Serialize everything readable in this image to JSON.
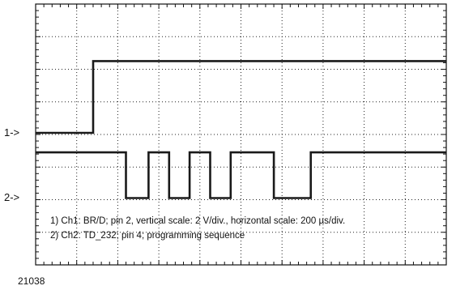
{
  "chart_data": {
    "type": "line",
    "title": "",
    "xlabel": "",
    "ylabel": "",
    "xlim": [
      0,
      10
    ],
    "ylim": [
      0,
      8
    ],
    "grid": true,
    "divisions": {
      "x": 10,
      "y": 8
    },
    "series": [
      {
        "values": [
          {
            "x": 0.0,
            "y": 4.05
          },
          {
            "x": 1.4,
            "y": 4.05
          },
          {
            "x": 1.4,
            "y": 6.25
          },
          {
            "x": 10.0,
            "y": 6.25
          }
        ]
      },
      {
        "values": [
          {
            "x": 0.0,
            "y": 3.45
          },
          {
            "x": 2.2,
            "y": 3.45
          },
          {
            "x": 2.2,
            "y": 2.05
          },
          {
            "x": 2.75,
            "y": 2.05
          },
          {
            "x": 2.75,
            "y": 3.45
          },
          {
            "x": 3.25,
            "y": 3.45
          },
          {
            "x": 3.25,
            "y": 2.05
          },
          {
            "x": 3.75,
            "y": 2.05
          },
          {
            "x": 3.75,
            "y": 3.45
          },
          {
            "x": 4.25,
            "y": 3.45
          },
          {
            "x": 4.25,
            "y": 2.05
          },
          {
            "x": 4.75,
            "y": 2.05
          },
          {
            "x": 4.75,
            "y": 3.45
          },
          {
            "x": 5.8,
            "y": 3.45
          },
          {
            "x": 5.8,
            "y": 2.05
          },
          {
            "x": 6.7,
            "y": 2.05
          },
          {
            "x": 6.7,
            "y": 3.45
          },
          {
            "x": 10.0,
            "y": 3.45
          }
        ]
      }
    ],
    "channel_markers": [
      {
        "label": "1->",
        "y": 4.05
      },
      {
        "label": "2->",
        "y": 2.05
      }
    ],
    "annotations": [
      "1) Ch1: BR/D; pin 2, vertical scale: 2 V/div., horizontal scale: 200 µs/div.",
      "2) Ch2: TD_232; pin 4; programming sequence"
    ],
    "figure_id": "21038"
  },
  "colors": {
    "trace": "#1a1a1a",
    "grid": "#222222",
    "frame": "#111111"
  }
}
